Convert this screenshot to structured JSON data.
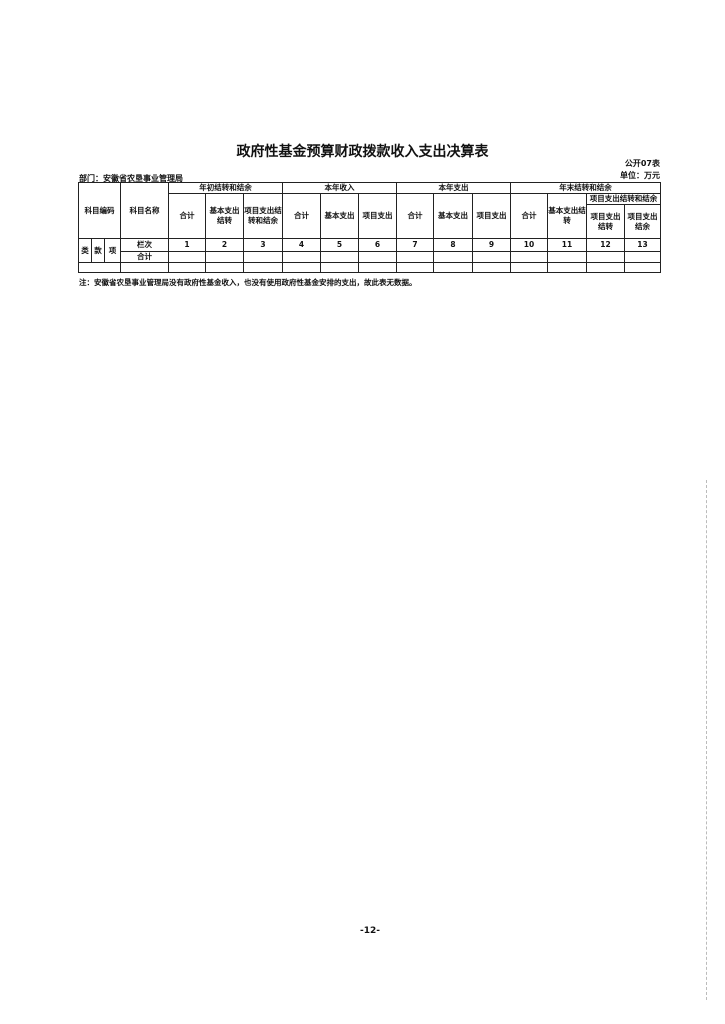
{
  "title": "政府性基金预算财政拨款收入支出决算表",
  "table_code": "公开07表",
  "unit": "单位：万元",
  "department": "部门：安徽省农垦事业管理局",
  "headers": {
    "subject_code": "科目编码",
    "subject_name": "科目名称",
    "begin_group": "年初结转和结余",
    "income_group": "本年收入",
    "expense_group": "本年支出",
    "end_group": "年末结转和结余",
    "end_project_group": "项目支出结转和结余",
    "total": "合计",
    "basic_carry": "基本支出结转",
    "project_carry_balance": "项目支出结转和结余",
    "basic": "基本支出",
    "project": "项目支出",
    "project_carry": "项目支出结转",
    "project_balance": "项目支出结余",
    "lei": "类",
    "kuan": "款",
    "xiang": "项",
    "column_no": "栏次",
    "sum_row": "合计"
  },
  "column_numbers": [
    "1",
    "2",
    "3",
    "4",
    "5",
    "6",
    "7",
    "8",
    "9",
    "10",
    "11",
    "12",
    "13"
  ],
  "note": "注：安徽省农垦事业管理局没有政府性基金收入，也没有使用政府性基金安排的支出，故此表无数据。",
  "page_number": "-12-"
}
